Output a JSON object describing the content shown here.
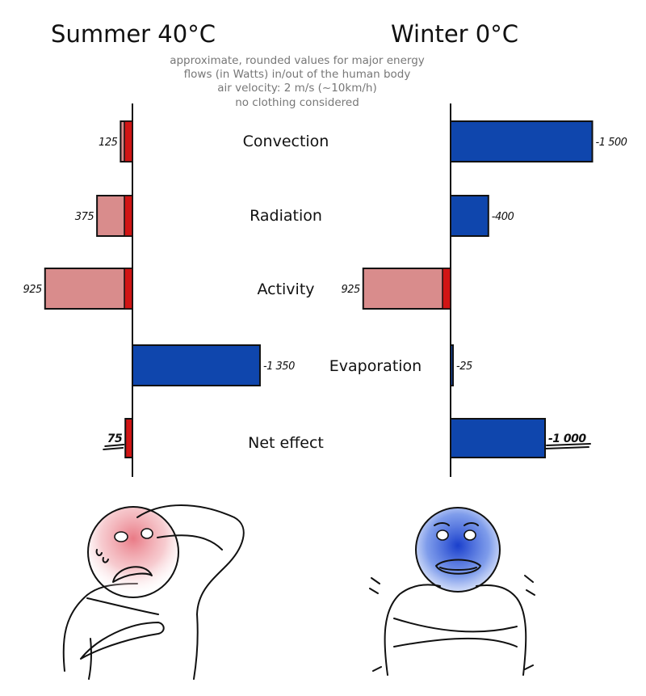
{
  "subtitle_lines": [
    "approximate, rounded values for major energy",
    "flows (in Watts) in/out of the human body",
    "air velocity: 2 m/s (~10km/h)",
    "no clothing considered"
  ],
  "colors": {
    "gain_light": "#d98c8c",
    "gain_dark": "#d11515",
    "loss": "#0f46ad"
  },
  "chart_data": [
    {
      "type": "bar",
      "orientation": "horizontal",
      "title": "Summer 40°C",
      "categories": [
        "Convection",
        "Radiation",
        "Activity",
        "Evaporation",
        "Net effect"
      ],
      "values": [
        125,
        375,
        925,
        -1350,
        75
      ],
      "value_labels": [
        "125",
        "375",
        "925",
        "-1 350",
        "75"
      ],
      "net_category": "Net effect"
    },
    {
      "type": "bar",
      "orientation": "horizontal",
      "title": "Winter 0°C",
      "categories": [
        "Convection",
        "Radiation",
        "Activity",
        "Evaporation",
        "Net effect"
      ],
      "values": [
        -1500,
        -400,
        925,
        -25,
        -1000
      ],
      "value_labels": [
        "-1 500",
        "-400",
        "925",
        "-25",
        "-1 000"
      ],
      "net_category": "Net effect"
    }
  ],
  "illustrations": [
    {
      "name": "hot-person-illustration",
      "face_color": "#e8737f"
    },
    {
      "name": "cold-person-illustration",
      "face_color": "#2d54d6"
    }
  ]
}
